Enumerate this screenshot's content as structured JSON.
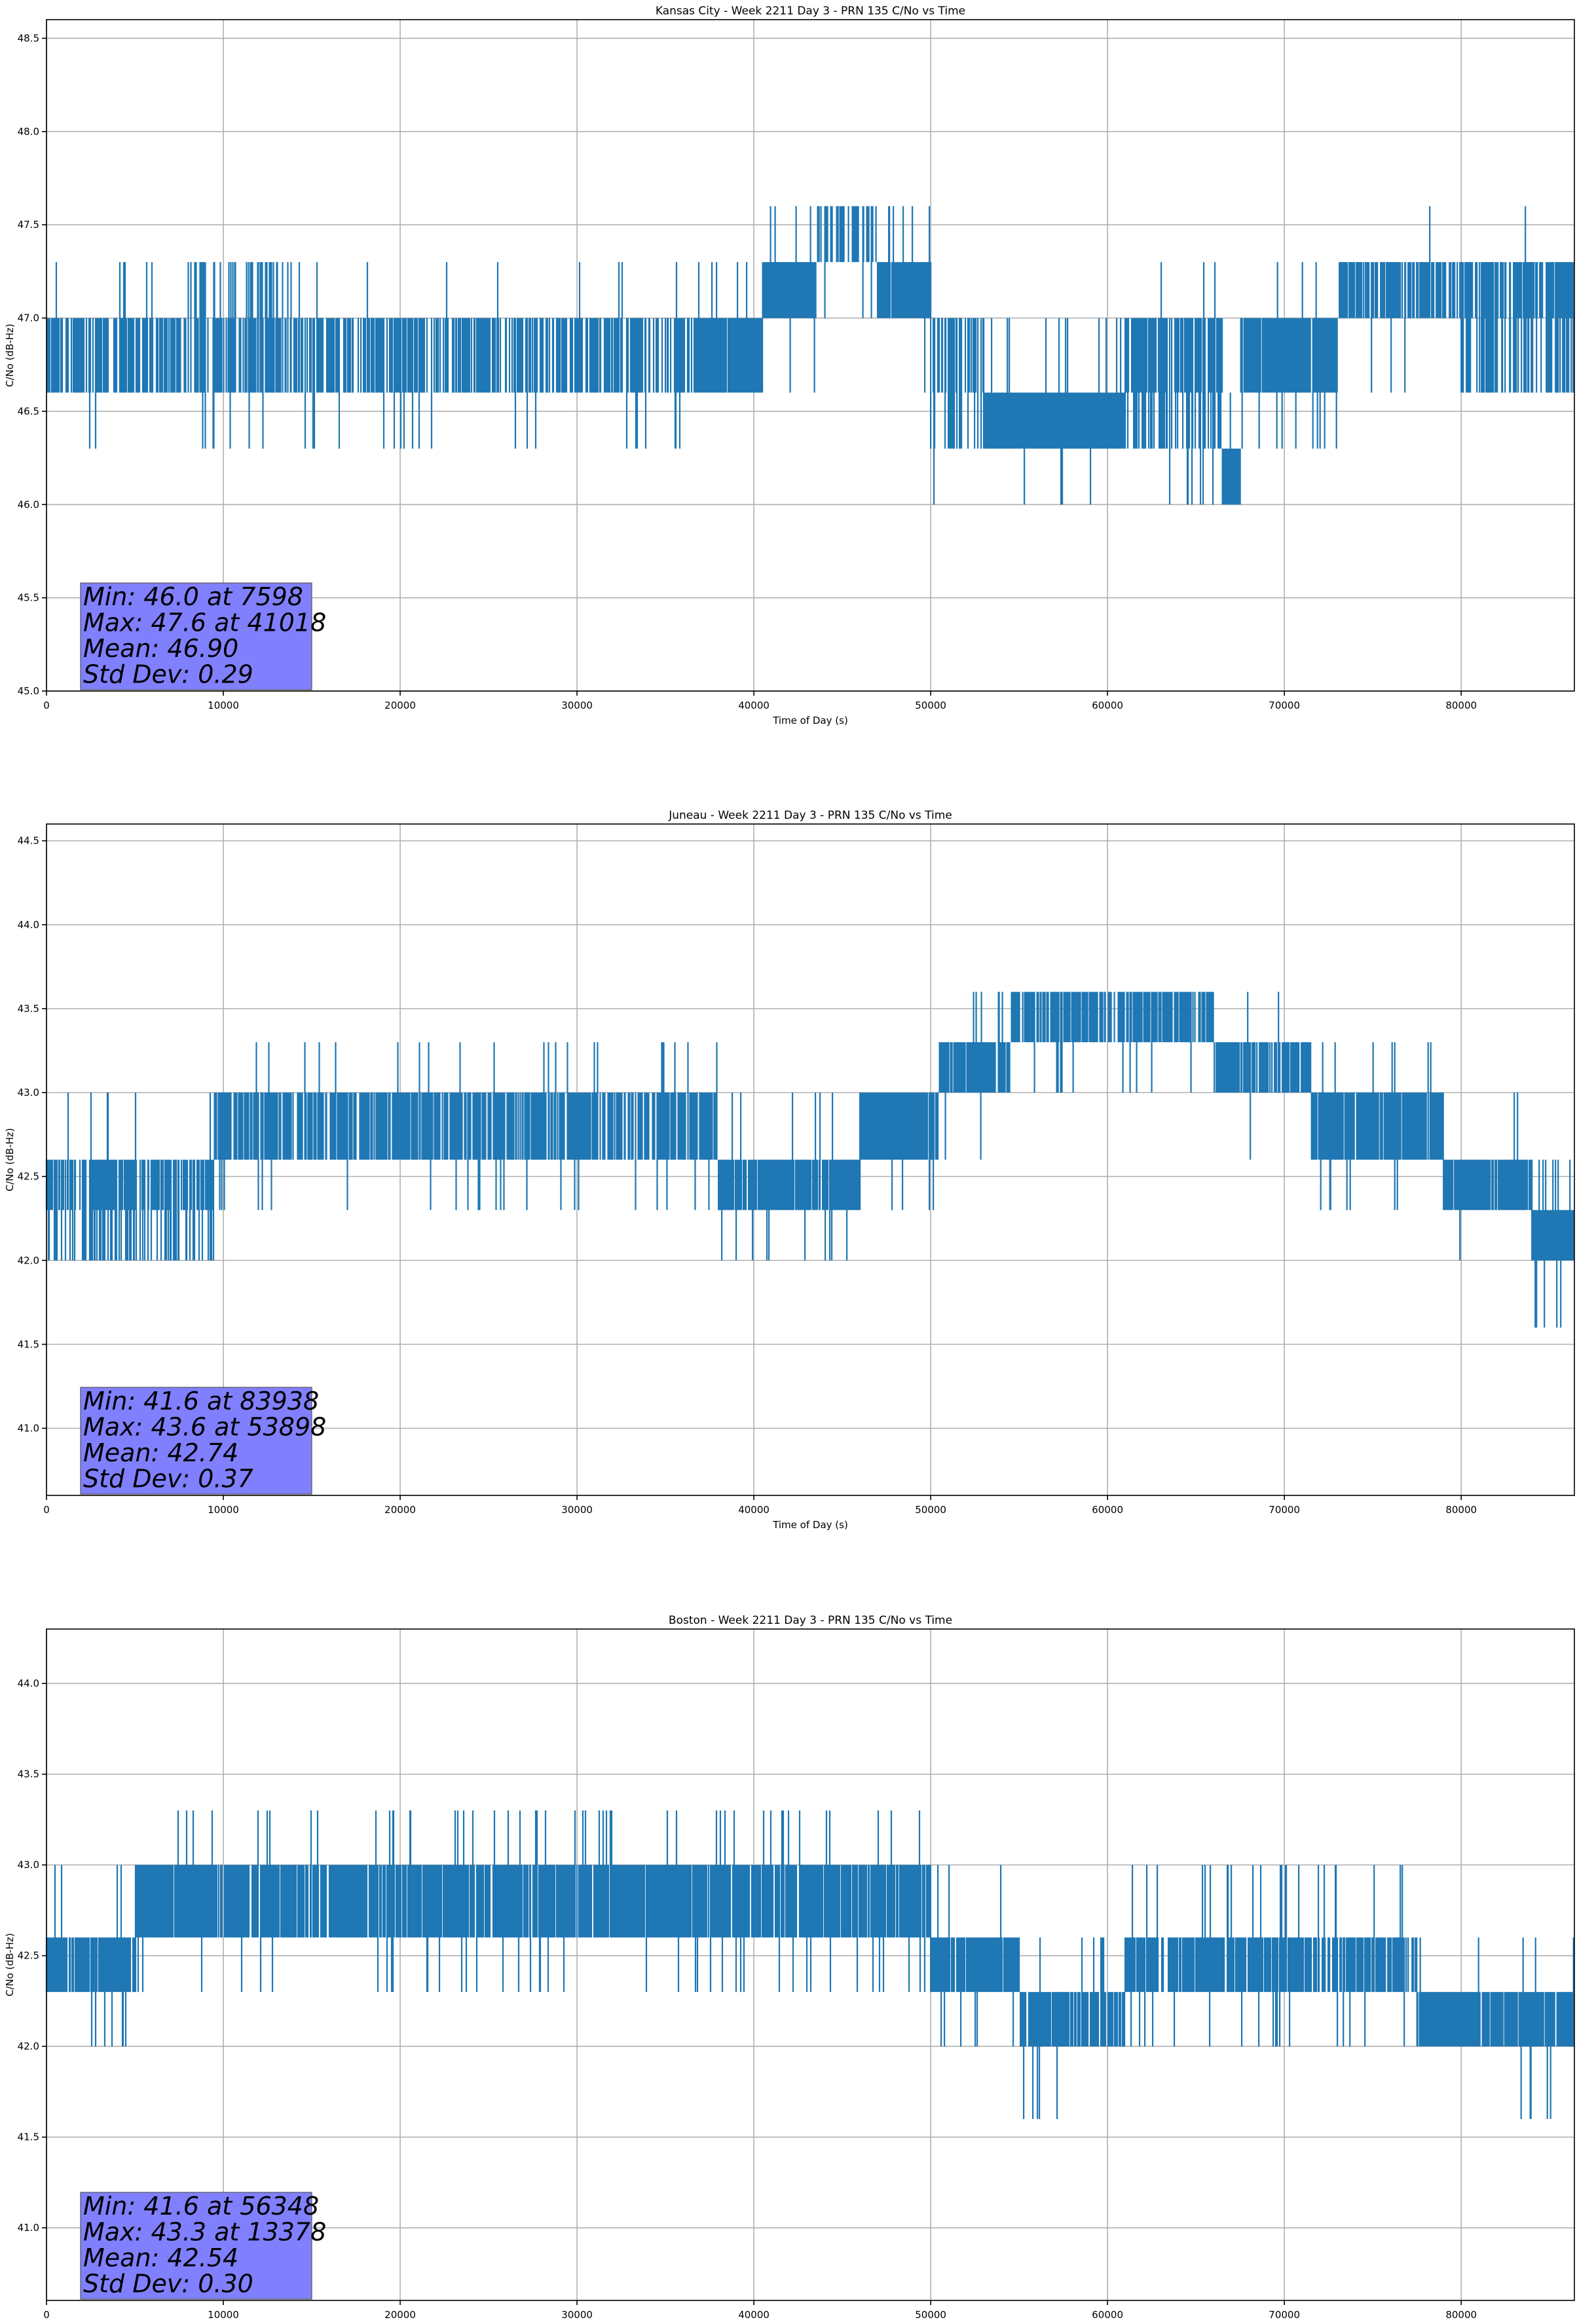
{
  "chart_data": [
    {
      "type": "line",
      "title": "Kansas City - Week 2211 Day 3 - PRN 135 C/No vs Time",
      "xlabel": "Time of Day (s)",
      "ylabel": "C/No (dB-Hz)",
      "xlim": [
        0,
        86400
      ],
      "ylim": [
        45.0,
        48.6
      ],
      "xticks": [
        0,
        10000,
        20000,
        30000,
        40000,
        50000,
        60000,
        70000,
        80000
      ],
      "yticks": [
        45.0,
        45.5,
        46.0,
        46.5,
        47.0,
        47.5,
        48.0,
        48.5
      ],
      "grid": true,
      "color": "#1f77b4",
      "stats": {
        "min_label": "Min: 46.0 at 7598",
        "max_label": "Max: 47.6 at 41018",
        "mean_label": "Mean: 46.90",
        "std_label": "Std Dev: 0.29",
        "box_color": "#8080ff"
      },
      "segments": [
        {
          "x": [
            0,
            7500
          ],
          "lows": [
            46.6
          ],
          "highs": [
            47.0
          ],
          "density": 0.55,
          "spike_lows": [
            46.3
          ],
          "spike_highs": [
            47.3
          ]
        },
        {
          "x": [
            7500,
            14000
          ],
          "lows": [
            46.6
          ],
          "highs": [
            47.0,
            47.3
          ],
          "density": 0.5,
          "spike_lows": [
            46.3
          ],
          "spike_highs": [
            47.3
          ]
        },
        {
          "x": [
            14000,
            37000
          ],
          "lows": [
            46.6
          ],
          "highs": [
            47.0
          ],
          "density": 0.5,
          "spike_lows": [
            46.3
          ],
          "spike_highs": [
            47.3
          ]
        },
        {
          "x": [
            37000,
            40500
          ],
          "lows": [
            46.6
          ],
          "highs": [
            47.0
          ],
          "density": 0.85,
          "spike_lows": [
            46.3
          ],
          "spike_highs": [
            47.3
          ]
        },
        {
          "x": [
            40500,
            43500
          ],
          "lows": [
            47.0
          ],
          "highs": [
            47.3
          ],
          "density": 0.85,
          "spike_lows": [
            46.6
          ],
          "spike_highs": [
            47.6
          ]
        },
        {
          "x": [
            43500,
            47000
          ],
          "lows": [
            47.3
          ],
          "highs": [
            47.6
          ],
          "density": 0.35,
          "spike_lows": [
            47.0
          ],
          "spike_highs": [
            47.6
          ]
        },
        {
          "x": [
            47000,
            50000
          ],
          "lows": [
            47.0
          ],
          "highs": [
            47.3
          ],
          "density": 0.9,
          "spike_lows": [
            46.6
          ],
          "spike_highs": [
            47.6
          ]
        },
        {
          "x": [
            50000,
            53000
          ],
          "lows": [
            46.6,
            46.3
          ],
          "highs": [
            47.0
          ],
          "density": 0.45,
          "spike_lows": [
            46.0
          ],
          "spike_highs": [
            47.0
          ]
        },
        {
          "x": [
            53000,
            61000
          ],
          "lows": [
            46.3
          ],
          "highs": [
            46.6
          ],
          "density": 0.9,
          "spike_lows": [
            46.0
          ],
          "spike_highs": [
            47.0
          ]
        },
        {
          "x": [
            61000,
            66500
          ],
          "lows": [
            46.6,
            46.3
          ],
          "highs": [
            47.0
          ],
          "density": 0.6,
          "spike_lows": [
            46.0
          ],
          "spike_highs": [
            47.3
          ]
        },
        {
          "x": [
            66500,
            67500
          ],
          "lows": [
            46.0
          ],
          "highs": [
            46.3
          ],
          "density": 0.9,
          "spike_lows": [
            46.0
          ],
          "spike_highs": [
            46.6
          ]
        },
        {
          "x": [
            67500,
            73000
          ],
          "lows": [
            46.6
          ],
          "highs": [
            47.0
          ],
          "density": 0.85,
          "spike_lows": [
            46.3
          ],
          "spike_highs": [
            47.3
          ]
        },
        {
          "x": [
            73000,
            80000
          ],
          "lows": [
            47.0
          ],
          "highs": [
            47.3
          ],
          "density": 0.6,
          "spike_lows": [
            46.6
          ],
          "spike_highs": [
            47.6
          ]
        },
        {
          "x": [
            80000,
            86400
          ],
          "lows": [
            47.0,
            46.6
          ],
          "highs": [
            47.3
          ],
          "density": 0.6,
          "spike_lows": [
            46.6
          ],
          "spike_highs": [
            47.6
          ]
        }
      ]
    },
    {
      "type": "line",
      "title": "Juneau - Week 2211 Day 3 - PRN 135 C/No vs Time",
      "xlabel": "Time of Day (s)",
      "ylabel": "C/No (dB-Hz)",
      "xlim": [
        0,
        86400
      ],
      "ylim": [
        40.6,
        44.6
      ],
      "xticks": [
        0,
        10000,
        20000,
        30000,
        40000,
        50000,
        60000,
        70000,
        80000
      ],
      "yticks": [
        41.0,
        41.5,
        42.0,
        42.5,
        43.0,
        43.5,
        44.0,
        44.5
      ],
      "grid": true,
      "color": "#1f77b4",
      "stats": {
        "min_label": "Min: 41.6 at 83938",
        "max_label": "Max: 43.6 at 53898",
        "mean_label": "Mean: 42.74",
        "std_label": "Std Dev: 0.37",
        "box_color": "#8080ff"
      },
      "segments": [
        {
          "x": [
            0,
            9500
          ],
          "lows": [
            42.3,
            42.0
          ],
          "highs": [
            42.6
          ],
          "density": 0.55,
          "spike_lows": [
            42.0
          ],
          "spike_highs": [
            43.0
          ]
        },
        {
          "x": [
            9500,
            38000
          ],
          "lows": [
            42.6
          ],
          "highs": [
            43.0
          ],
          "density": 0.6,
          "spike_lows": [
            42.3
          ],
          "spike_highs": [
            43.3
          ]
        },
        {
          "x": [
            38000,
            46000
          ],
          "lows": [
            42.3
          ],
          "highs": [
            42.6
          ],
          "density": 0.8,
          "spike_lows": [
            42.0
          ],
          "spike_highs": [
            43.0
          ]
        },
        {
          "x": [
            46000,
            50500
          ],
          "lows": [
            42.6
          ],
          "highs": [
            43.0
          ],
          "density": 0.85,
          "spike_lows": [
            42.3
          ],
          "spike_highs": [
            43.0
          ]
        },
        {
          "x": [
            50500,
            54500
          ],
          "lows": [
            43.0
          ],
          "highs": [
            43.3
          ],
          "density": 0.7,
          "spike_lows": [
            42.6
          ],
          "spike_highs": [
            43.6
          ]
        },
        {
          "x": [
            54500,
            66000
          ],
          "lows": [
            43.3
          ],
          "highs": [
            43.6
          ],
          "density": 0.6,
          "spike_lows": [
            43.0
          ],
          "spike_highs": [
            43.6
          ]
        },
        {
          "x": [
            66000,
            71500
          ],
          "lows": [
            43.0
          ],
          "highs": [
            43.3
          ],
          "density": 0.6,
          "spike_lows": [
            42.6
          ],
          "spike_highs": [
            43.6
          ]
        },
        {
          "x": [
            71500,
            79000
          ],
          "lows": [
            42.6
          ],
          "highs": [
            43.0
          ],
          "density": 0.75,
          "spike_lows": [
            42.3
          ],
          "spike_highs": [
            43.3
          ]
        },
        {
          "x": [
            79000,
            84000
          ],
          "lows": [
            42.3
          ],
          "highs": [
            42.6
          ],
          "density": 0.75,
          "spike_lows": [
            42.0
          ],
          "spike_highs": [
            43.0
          ]
        },
        {
          "x": [
            84000,
            86400
          ],
          "lows": [
            42.0
          ],
          "highs": [
            42.3
          ],
          "density": 0.85,
          "spike_lows": [
            41.6
          ],
          "spike_highs": [
            42.6
          ]
        }
      ]
    },
    {
      "type": "line",
      "title": "Boston - Week 2211 Day 3 - PRN 135 C/No vs Time",
      "xlabel": "Time of Day (s)",
      "ylabel": "C/No (dB-Hz)",
      "xlim": [
        0,
        86400
      ],
      "ylim": [
        40.6,
        44.3
      ],
      "xticks": [
        0,
        10000,
        20000,
        30000,
        40000,
        50000,
        60000,
        70000,
        80000
      ],
      "yticks": [
        41.0,
        41.5,
        42.0,
        42.5,
        43.0,
        43.5,
        44.0
      ],
      "grid": true,
      "color": "#1f77b4",
      "stats": {
        "min_label": "Min: 41.6 at 56348",
        "max_label": "Max: 43.3 at 13378",
        "mean_label": "Mean: 42.54",
        "std_label": "Std Dev: 0.30",
        "box_color": "#8080ff"
      },
      "segments": [
        {
          "x": [
            0,
            5000
          ],
          "lows": [
            42.3
          ],
          "highs": [
            42.6
          ],
          "density": 0.7,
          "spike_lows": [
            42.0
          ],
          "spike_highs": [
            43.0
          ]
        },
        {
          "x": [
            5000,
            50000
          ],
          "lows": [
            42.6
          ],
          "highs": [
            43.0
          ],
          "density": 0.75,
          "spike_lows": [
            42.3
          ],
          "spike_highs": [
            43.3
          ]
        },
        {
          "x": [
            50000,
            55000
          ],
          "lows": [
            42.3
          ],
          "highs": [
            42.6
          ],
          "density": 0.8,
          "spike_lows": [
            42.0
          ],
          "spike_highs": [
            43.0
          ]
        },
        {
          "x": [
            55000,
            61000
          ],
          "lows": [
            42.0
          ],
          "highs": [
            42.3
          ],
          "density": 0.7,
          "spike_lows": [
            41.6
          ],
          "spike_highs": [
            42.6
          ]
        },
        {
          "x": [
            61000,
            73000
          ],
          "lows": [
            42.3
          ],
          "highs": [
            42.6
          ],
          "density": 0.7,
          "spike_lows": [
            42.0
          ],
          "spike_highs": [
            43.0
          ]
        },
        {
          "x": [
            73000,
            77500
          ],
          "lows": [
            42.3
          ],
          "highs": [
            42.6
          ],
          "density": 0.6,
          "spike_lows": [
            42.0
          ],
          "spike_highs": [
            43.0
          ]
        },
        {
          "x": [
            77500,
            86400
          ],
          "lows": [
            42.0
          ],
          "highs": [
            42.3
          ],
          "density": 0.75,
          "spike_lows": [
            41.6
          ],
          "spike_highs": [
            42.6
          ]
        }
      ]
    }
  ]
}
